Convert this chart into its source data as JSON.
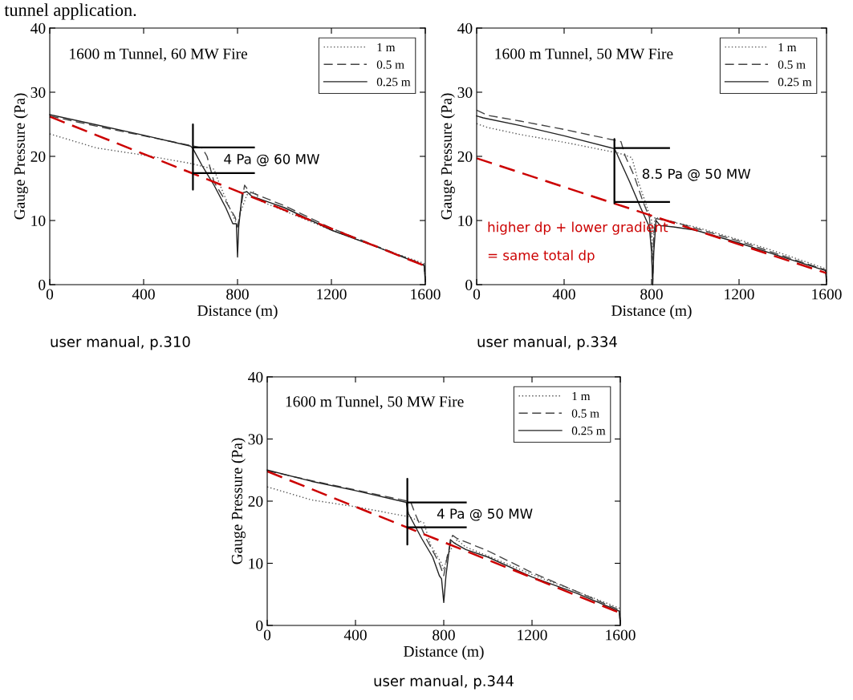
{
  "chart_data": [
    {
      "type": "line",
      "title": "1600 m Tunnel, 60 MW Fire",
      "xlabel": "Distance (m)",
      "ylabel": "Gauge Pressure (Pa)",
      "xlim": [
        0,
        1600
      ],
      "ylim": [
        0,
        40
      ],
      "xticks": [
        0,
        400,
        800,
        1200,
        1600
      ],
      "yticks": [
        0,
        10,
        20,
        30,
        40
      ],
      "grid": false,
      "legend": "top right",
      "series": [
        {
          "name": "1 m",
          "color": "#555555",
          "line_style": "dotted",
          "x": [
            0,
            200,
            400,
            600,
            700,
            720,
            760,
            790,
            800,
            810,
            840,
            870,
            900,
            1000,
            1200,
            1400,
            1595,
            1600
          ],
          "values": [
            23.5,
            21.3,
            20.2,
            18.9,
            18.0,
            16,
            12.5,
            10,
            9,
            11,
            14.0,
            14.5,
            13.0,
            11.5,
            8.5,
            5.8,
            3.3,
            1.0
          ]
        },
        {
          "name": "0.5 m",
          "color": "#444444",
          "line_style": "dashed",
          "x": [
            0,
            200,
            400,
            600,
            650,
            670,
            700,
            750,
            790,
            800,
            810,
            830,
            850,
            1000,
            1200,
            1400,
            1595,
            1600
          ],
          "values": [
            26.3,
            24.7,
            23.2,
            21.7,
            21.3,
            20,
            16,
            13,
            10.5,
            9,
            11,
            15.5,
            14.5,
            12.3,
            8.8,
            5.9,
            3.1,
            0.8
          ]
        },
        {
          "name": "0.25 m",
          "color": "#222222",
          "line_style": "solid",
          "x": [
            0,
            200,
            400,
            600,
            610,
            650,
            700,
            750,
            780,
            795,
            800,
            805,
            820,
            840,
            860,
            1000,
            1200,
            1400,
            1595,
            1600
          ],
          "values": [
            26.5,
            24.9,
            23.3,
            21.6,
            21.2,
            18.5,
            15.5,
            12.0,
            9.5,
            9.5,
            4.3,
            9,
            14.3,
            14.5,
            13.8,
            12.0,
            8.5,
            5.8,
            3.0,
            0.5
          ]
        },
        {
          "type": "line",
          "color": "#cc0000",
          "line_style": "dashed",
          "x": [
            0,
            1600
          ],
          "values": [
            26.2,
            2.9
          ]
        },
        {
          "type": "line",
          "color": "#000000",
          "line_style": "solid",
          "x": [
            870,
            610,
            610,
            610,
            610,
            870
          ],
          "values": [
            21.4,
            21.4,
            25,
            14.8,
            17.4,
            17.4
          ]
        }
      ],
      "annotations": [
        "tunnel application.",
        "4 Pa @ 60 MW",
        "user manual, p.310"
      ]
    },
    {
      "type": "line",
      "title": "1600 m Tunnel, 50 MW Fire",
      "xlabel": "Distance (m)",
      "ylabel": "Gauge Pressure (Pa)",
      "xlim": [
        0,
        1600
      ],
      "ylim": [
        0,
        40
      ],
      "xticks": [
        0,
        400,
        800,
        1200,
        1600
      ],
      "yticks": [
        0,
        10,
        20,
        30,
        40
      ],
      "grid": false,
      "legend": "top right",
      "series": [
        {
          "name": "1 m",
          "color": "#555555",
          "line_style": "dotted",
          "x": [
            0,
            50,
            200,
            400,
            650,
            710,
            740,
            780,
            800,
            805,
            815,
            900,
            1000,
            1200,
            1400,
            1595,
            1600
          ],
          "values": [
            25.1,
            24.5,
            23.4,
            22.2,
            20.5,
            19.8,
            16,
            12,
            10,
            4,
            10.5,
            9.7,
            9,
            7,
            4.8,
            2.5,
            1.0
          ]
        },
        {
          "name": "0.5 m",
          "color": "#444444",
          "line_style": "dashed",
          "x": [
            0,
            50,
            200,
            400,
            660,
            680,
            720,
            760,
            790,
            800,
            805,
            810,
            820,
            900,
            1000,
            1200,
            1400,
            1595,
            1600
          ],
          "values": [
            27.2,
            26.4,
            25.5,
            24.2,
            22.3,
            20,
            17,
            13,
            10.5,
            6,
            0,
            8,
            10.3,
            9.8,
            8.8,
            6.8,
            4.5,
            2.3,
            0.5
          ]
        },
        {
          "name": "0.25 m",
          "color": "#222222",
          "line_style": "solid",
          "x": [
            0,
            30,
            200,
            400,
            630,
            640,
            700,
            750,
            790,
            800,
            805,
            810,
            820,
            840,
            900,
            1000,
            1200,
            1400,
            1595,
            1600
          ],
          "values": [
            26.3,
            26,
            24.8,
            23.2,
            21.2,
            20.5,
            16,
            12,
            9,
            5,
            0,
            5,
            10,
            9.2,
            9,
            8.5,
            6.5,
            4.3,
            2.2,
            0.5
          ]
        },
        {
          "type": "line",
          "color": "#cc0000",
          "line_style": "dashed",
          "x": [
            0,
            1600
          ],
          "values": [
            19.7,
            1.8
          ]
        },
        {
          "type": "line",
          "color": "#000000",
          "line_style": "solid",
          "x": [
            880,
            630,
            630,
            630,
            630,
            880
          ],
          "values": [
            21.3,
            21.3,
            22.7,
            12.7,
            12.9,
            12.9
          ]
        }
      ],
      "annotations": [
        "8.5 Pa @ 50 MW",
        "higher dp + lower gradient",
        "= same total dp",
        "user manual, p.334"
      ]
    },
    {
      "type": "line",
      "title": "1600 m Tunnel, 50 MW Fire",
      "xlabel": "Distance (m)",
      "ylabel": "Gauge Pressure (Pa)",
      "xlim": [
        0,
        1600
      ],
      "ylim": [
        0,
        40
      ],
      "xticks": [
        0,
        400,
        800,
        1200,
        1600
      ],
      "yticks": [
        0,
        10,
        20,
        30,
        40
      ],
      "grid": false,
      "legend": "top right",
      "series": [
        {
          "name": "1 m",
          "color": "#555555",
          "line_style": "dotted",
          "x": [
            0,
            200,
            400,
            640,
            710,
            740,
            790,
            800,
            820,
            860,
            900,
            1000,
            1200,
            1400,
            1595,
            1600
          ],
          "values": [
            22.3,
            20.2,
            19.1,
            17.5,
            16.5,
            13,
            10,
            9,
            11.5,
            13.8,
            12.6,
            11.2,
            8.2,
            5.5,
            2.8,
            0.5
          ]
        },
        {
          "name": "0.5 m",
          "color": "#444444",
          "line_style": "dashed",
          "x": [
            0,
            200,
            400,
            650,
            670,
            720,
            780,
            800,
            815,
            840,
            860,
            1000,
            1200,
            1400,
            1595,
            1600
          ],
          "values": [
            24.9,
            23.3,
            21.8,
            19.9,
            18,
            14,
            10,
            8,
            11,
            14.5,
            14,
            12,
            8.5,
            5.5,
            2.5,
            0.5
          ]
        },
        {
          "name": "0.25 m",
          "color": "#222222",
          "line_style": "solid",
          "x": [
            0,
            200,
            400,
            630,
            640,
            700,
            750,
            780,
            790,
            800,
            810,
            830,
            850,
            900,
            1000,
            1200,
            1400,
            1595,
            1600
          ],
          "values": [
            25,
            23.2,
            21.7,
            19.8,
            18,
            14,
            11,
            8,
            7.5,
            3.7,
            8,
            13.8,
            13.2,
            12.2,
            11,
            7.8,
            5.2,
            2.3,
            0.3
          ]
        },
        {
          "type": "line",
          "color": "#cc0000",
          "line_style": "dashed",
          "x": [
            0,
            1600
          ],
          "values": [
            24.8,
            2.0
          ]
        },
        {
          "type": "line",
          "color": "#000000",
          "line_style": "solid",
          "x": [
            900,
            635,
            635,
            635,
            635,
            900
          ],
          "values": [
            19.8,
            19.8,
            23.6,
            13.0,
            15.8,
            15.8
          ]
        }
      ],
      "annotations": [
        "4 Pa @ 50 MW",
        "user manual, p.344"
      ]
    }
  ]
}
